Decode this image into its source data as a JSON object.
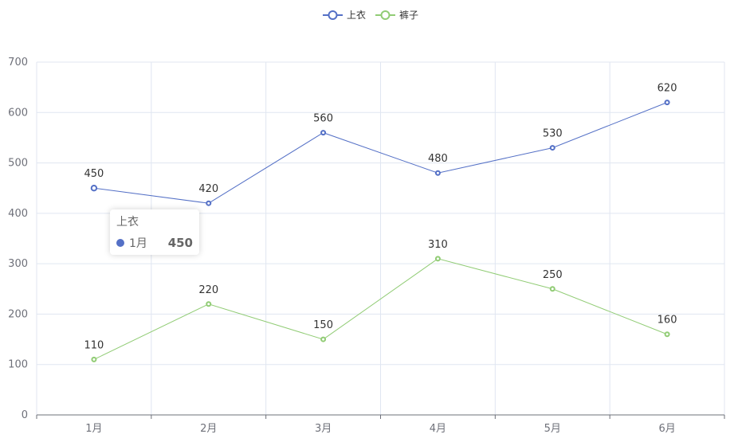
{
  "chart_data": {
    "type": "line",
    "title": "",
    "categories": [
      "1月",
      "2月",
      "3月",
      "4月",
      "5月",
      "6月"
    ],
    "series": [
      {
        "name": "上衣",
        "color": "#5470c6",
        "values": [
          450,
          420,
          560,
          480,
          530,
          620
        ]
      },
      {
        "name": "裤子",
        "color": "#91cc75",
        "values": [
          110,
          220,
          150,
          310,
          250,
          160
        ]
      }
    ],
    "xlabel": "",
    "ylabel": "",
    "ylim": [
      0,
      700
    ],
    "yticks": [
      0,
      100,
      200,
      300,
      400,
      500,
      600,
      700
    ],
    "grid": true,
    "legend_position": "top-center",
    "data_labels": true
  },
  "legend": {
    "items": [
      {
        "label": "上衣",
        "color": "#5470c6"
      },
      {
        "label": "裤子",
        "color": "#91cc75"
      }
    ]
  },
  "tooltip": {
    "title": "上衣",
    "category": "1月",
    "value": "450",
    "color": "#5470c6"
  }
}
